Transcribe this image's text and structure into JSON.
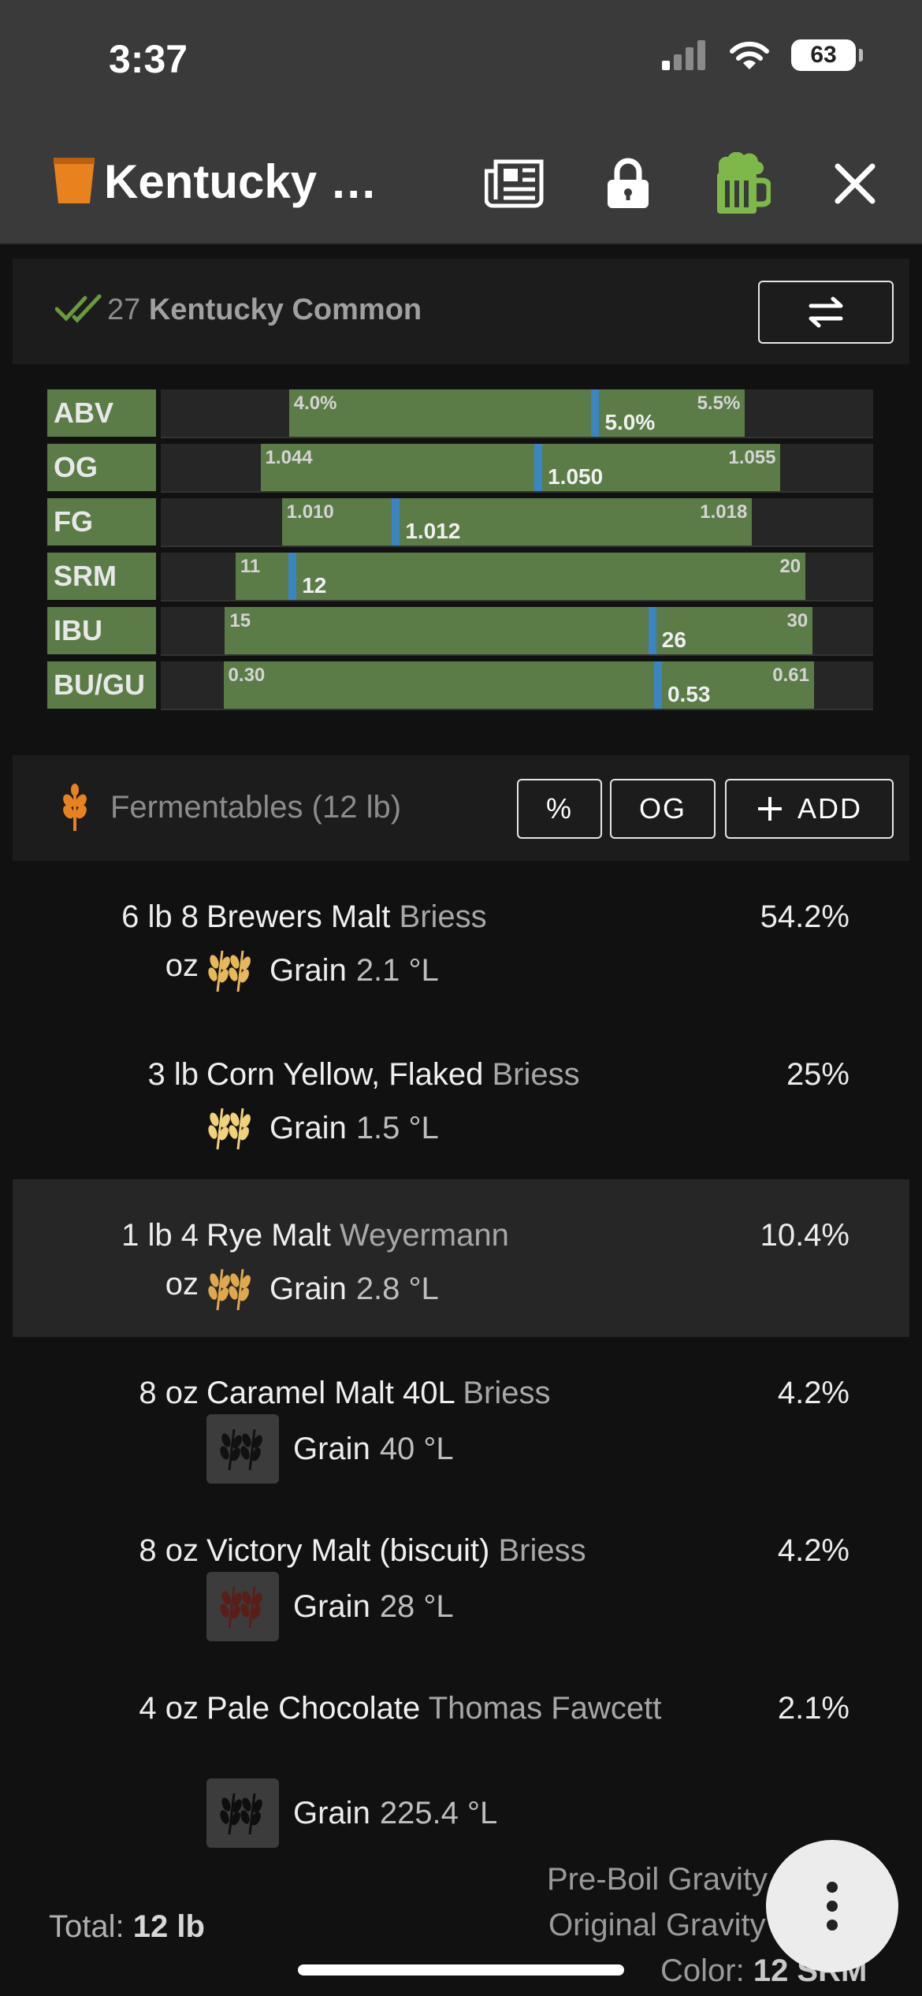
{
  "status": {
    "time": "3:37",
    "battery": "63"
  },
  "header": {
    "title": "Kentucky 5...."
  },
  "style": {
    "number": "27",
    "name": "Kentucky Common"
  },
  "stats": [
    {
      "label": "ABV",
      "min": "4.0%",
      "max": "5.5%",
      "value": "5.0%",
      "lo": 0.18,
      "hi": 0.82,
      "pos": 0.61
    },
    {
      "label": "OG",
      "min": "1.044",
      "max": "1.055",
      "value": "1.050",
      "lo": 0.14,
      "hi": 0.87,
      "pos": 0.53
    },
    {
      "label": "FG",
      "min": "1.010",
      "max": "1.018",
      "value": "1.012",
      "lo": 0.17,
      "hi": 0.83,
      "pos": 0.33
    },
    {
      "label": "SRM",
      "min": "11",
      "max": "20",
      "value": "12",
      "lo": 0.105,
      "hi": 0.905,
      "pos": 0.185
    },
    {
      "label": "IBU",
      "min": "15",
      "max": "30",
      "value": "26",
      "lo": 0.09,
      "hi": 0.915,
      "pos": 0.69
    },
    {
      "label": "BU/GU",
      "min": "0.30",
      "max": "0.61",
      "value": "0.53",
      "lo": 0.088,
      "hi": 0.917,
      "pos": 0.698
    }
  ],
  "fermentables": {
    "title": "Fermentables (12 lb)",
    "btn_pct": "%",
    "btn_og": "OG",
    "btn_add": "ADD",
    "items": [
      {
        "amount_l1": "6 lb 8",
        "amount_l2": "oz",
        "name": "Brewers Malt",
        "brand": "Briess",
        "pct": "54.2%",
        "type": "Grain",
        "color": "2.1 °L",
        "icon_color": "#e7b85a",
        "boxed": false
      },
      {
        "amount_l1": "3 lb",
        "amount_l2": "",
        "name": "Corn Yellow, Flaked",
        "brand": "Briess",
        "pct": "25%",
        "type": "Grain",
        "color": "1.5 °L",
        "icon_color": "#f0d27a",
        "boxed": false
      },
      {
        "amount_l1": "1 lb 4",
        "amount_l2": "oz",
        "name": "Rye Malt",
        "brand": "Weyermann",
        "pct": "10.4%",
        "type": "Grain",
        "color": "2.8 °L",
        "icon_color": "#e0a84c",
        "boxed": false
      },
      {
        "amount_l1": "8 oz",
        "amount_l2": "",
        "name": "Caramel Malt 40L",
        "brand": "Briess",
        "pct": "4.2%",
        "type": "Grain",
        "color": "40 °L",
        "icon_color": "#111111",
        "boxed": true
      },
      {
        "amount_l1": "8 oz",
        "amount_l2": "",
        "name": "Victory Malt (biscuit)",
        "brand": "Briess",
        "pct": "4.2%",
        "type": "Grain",
        "color": "28 °L",
        "icon_color": "#5a1e18",
        "boxed": true
      },
      {
        "amount_l1": "4 oz",
        "amount_l2": "",
        "name": "Pale Chocolate",
        "brand": "Thomas Fawcett",
        "pct": "2.1%",
        "type": "Grain",
        "color": "225.4 °L",
        "icon_color": "#0e0e0e",
        "boxed": true
      }
    ]
  },
  "footer": {
    "total_label": "Total:",
    "total_value": "12 lb",
    "preboil_label": "Pre-Boil Gravity",
    "og_label": "Original Gravity",
    "color_label": "Color:",
    "color_value": "12 SRM"
  },
  "colors": {
    "accent_green": "#5b7c47",
    "marker_blue": "#3b85c4",
    "orange": "#e8821e",
    "beer_green": "#7fb84a"
  }
}
